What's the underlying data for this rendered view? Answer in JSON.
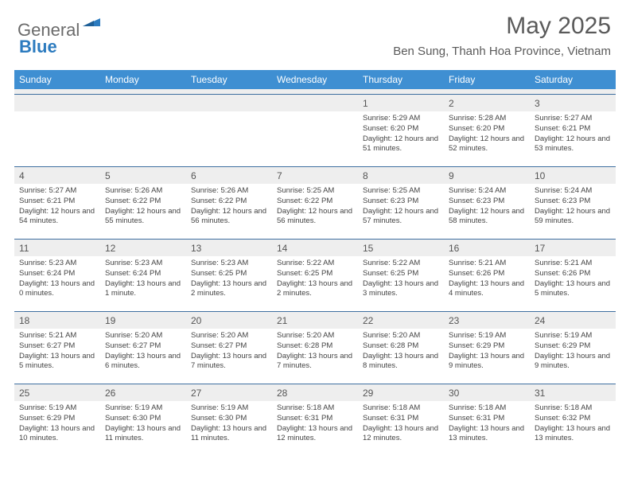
{
  "brand": {
    "word1": "General",
    "word2": "Blue"
  },
  "title": "May 2025",
  "location": "Ben Sung, Thanh Hoa Province, Vietnam",
  "colors": {
    "header_bg": "#3f8fd2",
    "header_text": "#ffffff",
    "daynum_bg": "#eeeeee",
    "rule": "#3f6fa0",
    "body_text": "#444444",
    "title_text": "#5a5a5a",
    "logo_gray": "#6b6b6b",
    "logo_blue": "#2c7bbf"
  },
  "dow": [
    "Sunday",
    "Monday",
    "Tuesday",
    "Wednesday",
    "Thursday",
    "Friday",
    "Saturday"
  ],
  "labels": {
    "sunrise": "Sunrise:",
    "sunset": "Sunset:",
    "daylight": "Daylight:"
  },
  "weeks": [
    [
      null,
      null,
      null,
      null,
      {
        "n": "1",
        "sr": "5:29 AM",
        "ss": "6:20 PM",
        "dl": "12 hours and 51 minutes."
      },
      {
        "n": "2",
        "sr": "5:28 AM",
        "ss": "6:20 PM",
        "dl": "12 hours and 52 minutes."
      },
      {
        "n": "3",
        "sr": "5:27 AM",
        "ss": "6:21 PM",
        "dl": "12 hours and 53 minutes."
      }
    ],
    [
      {
        "n": "4",
        "sr": "5:27 AM",
        "ss": "6:21 PM",
        "dl": "12 hours and 54 minutes."
      },
      {
        "n": "5",
        "sr": "5:26 AM",
        "ss": "6:22 PM",
        "dl": "12 hours and 55 minutes."
      },
      {
        "n": "6",
        "sr": "5:26 AM",
        "ss": "6:22 PM",
        "dl": "12 hours and 56 minutes."
      },
      {
        "n": "7",
        "sr": "5:25 AM",
        "ss": "6:22 PM",
        "dl": "12 hours and 56 minutes."
      },
      {
        "n": "8",
        "sr": "5:25 AM",
        "ss": "6:23 PM",
        "dl": "12 hours and 57 minutes."
      },
      {
        "n": "9",
        "sr": "5:24 AM",
        "ss": "6:23 PM",
        "dl": "12 hours and 58 minutes."
      },
      {
        "n": "10",
        "sr": "5:24 AM",
        "ss": "6:23 PM",
        "dl": "12 hours and 59 minutes."
      }
    ],
    [
      {
        "n": "11",
        "sr": "5:23 AM",
        "ss": "6:24 PM",
        "dl": "13 hours and 0 minutes."
      },
      {
        "n": "12",
        "sr": "5:23 AM",
        "ss": "6:24 PM",
        "dl": "13 hours and 1 minute."
      },
      {
        "n": "13",
        "sr": "5:23 AM",
        "ss": "6:25 PM",
        "dl": "13 hours and 2 minutes."
      },
      {
        "n": "14",
        "sr": "5:22 AM",
        "ss": "6:25 PM",
        "dl": "13 hours and 2 minutes."
      },
      {
        "n": "15",
        "sr": "5:22 AM",
        "ss": "6:25 PM",
        "dl": "13 hours and 3 minutes."
      },
      {
        "n": "16",
        "sr": "5:21 AM",
        "ss": "6:26 PM",
        "dl": "13 hours and 4 minutes."
      },
      {
        "n": "17",
        "sr": "5:21 AM",
        "ss": "6:26 PM",
        "dl": "13 hours and 5 minutes."
      }
    ],
    [
      {
        "n": "18",
        "sr": "5:21 AM",
        "ss": "6:27 PM",
        "dl": "13 hours and 5 minutes."
      },
      {
        "n": "19",
        "sr": "5:20 AM",
        "ss": "6:27 PM",
        "dl": "13 hours and 6 minutes."
      },
      {
        "n": "20",
        "sr": "5:20 AM",
        "ss": "6:27 PM",
        "dl": "13 hours and 7 minutes."
      },
      {
        "n": "21",
        "sr": "5:20 AM",
        "ss": "6:28 PM",
        "dl": "13 hours and 7 minutes."
      },
      {
        "n": "22",
        "sr": "5:20 AM",
        "ss": "6:28 PM",
        "dl": "13 hours and 8 minutes."
      },
      {
        "n": "23",
        "sr": "5:19 AM",
        "ss": "6:29 PM",
        "dl": "13 hours and 9 minutes."
      },
      {
        "n": "24",
        "sr": "5:19 AM",
        "ss": "6:29 PM",
        "dl": "13 hours and 9 minutes."
      }
    ],
    [
      {
        "n": "25",
        "sr": "5:19 AM",
        "ss": "6:29 PM",
        "dl": "13 hours and 10 minutes."
      },
      {
        "n": "26",
        "sr": "5:19 AM",
        "ss": "6:30 PM",
        "dl": "13 hours and 11 minutes."
      },
      {
        "n": "27",
        "sr": "5:19 AM",
        "ss": "6:30 PM",
        "dl": "13 hours and 11 minutes."
      },
      {
        "n": "28",
        "sr": "5:18 AM",
        "ss": "6:31 PM",
        "dl": "13 hours and 12 minutes."
      },
      {
        "n": "29",
        "sr": "5:18 AM",
        "ss": "6:31 PM",
        "dl": "13 hours and 12 minutes."
      },
      {
        "n": "30",
        "sr": "5:18 AM",
        "ss": "6:31 PM",
        "dl": "13 hours and 13 minutes."
      },
      {
        "n": "31",
        "sr": "5:18 AM",
        "ss": "6:32 PM",
        "dl": "13 hours and 13 minutes."
      }
    ]
  ]
}
